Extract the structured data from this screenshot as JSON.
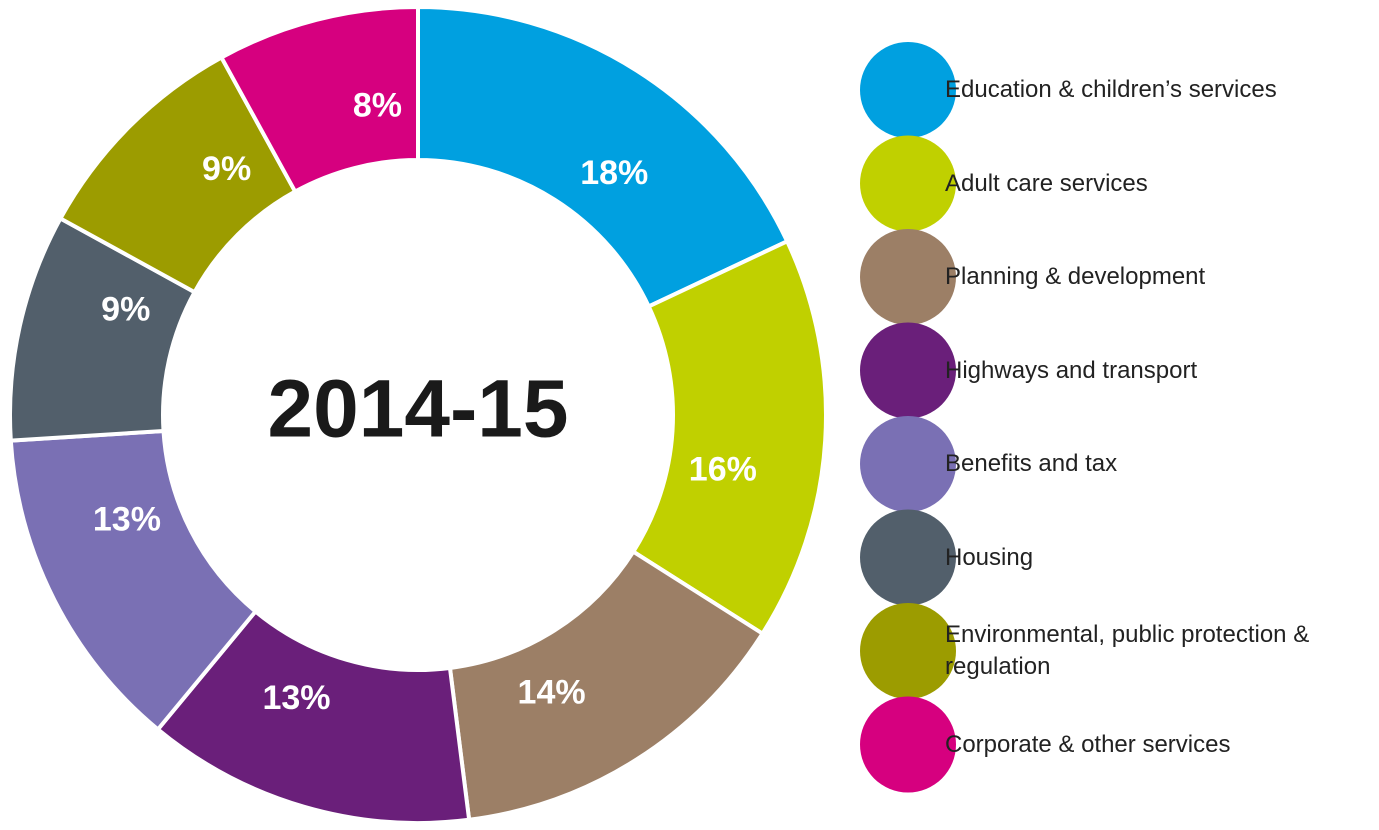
{
  "chart_data": {
    "type": "donut",
    "title": "2014-15",
    "categories": [
      "Education & children’s services",
      "Adult care services",
      "Planning & development",
      "Highways and transport",
      "Benefits and tax",
      "Housing",
      "Environmental, public protection & regulation",
      "Corporate & other services"
    ],
    "values": [
      18,
      16,
      14,
      13,
      13,
      9,
      9,
      8
    ],
    "value_labels": [
      "18%",
      "16%",
      "14%",
      "13%",
      "13%",
      "9%",
      "9%",
      "8%"
    ],
    "colors": [
      "#00a0e0",
      "#c0d000",
      "#9c7f66",
      "#6a1f7a",
      "#7a70b4",
      "#525f6b",
      "#9c9c00",
      "#d6007f"
    ],
    "legend": "right"
  }
}
